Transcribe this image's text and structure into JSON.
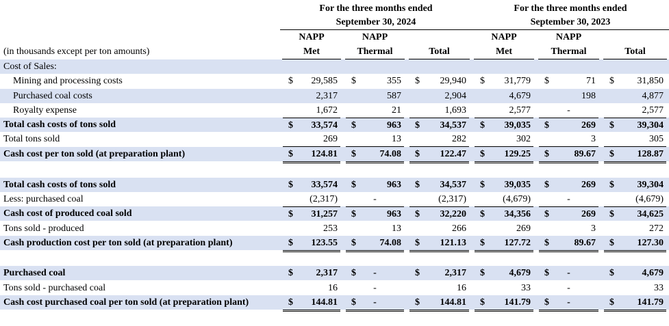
{
  "header": {
    "period_2024_line1": "For the three months ended",
    "period_2024_line2": "September 30, 2024",
    "period_2023_line1": "For the three months ended",
    "period_2023_line2": "September 30, 2023",
    "columns": [
      {
        "line1": "NAPP",
        "line2": "Met"
      },
      {
        "line1": "NAPP",
        "line2": "Thermal"
      },
      {
        "line1": "",
        "line2": "Total"
      },
      {
        "line1": "NAPP",
        "line2": "Met"
      },
      {
        "line1": "NAPP",
        "line2": "Thermal"
      },
      {
        "line1": "",
        "line2": "Total"
      }
    ],
    "units_note": "(in thousands except per ton amounts)"
  },
  "rows": [
    {
      "label": "Cost of Sales:",
      "cells": []
    },
    {
      "label": "Mining and processing costs",
      "cells": [
        {
          "cur": "$",
          "val": "29,585"
        },
        {
          "cur": "$",
          "val": "355"
        },
        {
          "cur": "$",
          "val": "29,940"
        },
        {
          "cur": "$",
          "val": "31,779"
        },
        {
          "cur": "$",
          "val": "71"
        },
        {
          "cur": "$",
          "val": "31,850"
        }
      ]
    },
    {
      "label": "Purchased coal costs",
      "cells": [
        {
          "cur": "",
          "val": "2,317"
        },
        {
          "cur": "",
          "val": "587"
        },
        {
          "cur": "",
          "val": "2,904"
        },
        {
          "cur": "",
          "val": "4,679"
        },
        {
          "cur": "",
          "val": "198"
        },
        {
          "cur": "",
          "val": "4,877"
        }
      ]
    },
    {
      "label": "Royalty expense",
      "cells": [
        {
          "cur": "",
          "val": "1,672"
        },
        {
          "cur": "",
          "val": "21"
        },
        {
          "cur": "",
          "val": "1,693"
        },
        {
          "cur": "",
          "val": "2,577"
        },
        {
          "cur": "",
          "val": "-"
        },
        {
          "cur": "",
          "val": "2,577"
        }
      ]
    },
    {
      "label": "Total cash costs of tons sold",
      "cells": [
        {
          "cur": "$",
          "val": "33,574"
        },
        {
          "cur": "$",
          "val": "963"
        },
        {
          "cur": "$",
          "val": "34,537"
        },
        {
          "cur": "$",
          "val": "39,035"
        },
        {
          "cur": "$",
          "val": "269"
        },
        {
          "cur": "$",
          "val": "39,304"
        }
      ]
    },
    {
      "label": "Total tons sold",
      "cells": [
        {
          "cur": "",
          "val": "269"
        },
        {
          "cur": "",
          "val": "13"
        },
        {
          "cur": "",
          "val": "282"
        },
        {
          "cur": "",
          "val": "302"
        },
        {
          "cur": "",
          "val": "3"
        },
        {
          "cur": "",
          "val": "305"
        }
      ]
    },
    {
      "label": "Cash cost per ton sold (at preparation plant)",
      "cells": [
        {
          "cur": "$",
          "val": "124.81"
        },
        {
          "cur": "$",
          "val": "74.08"
        },
        {
          "cur": "$",
          "val": "122.47"
        },
        {
          "cur": "$",
          "val": "129.25"
        },
        {
          "cur": "$",
          "val": "89.67"
        },
        {
          "cur": "$",
          "val": "128.87"
        }
      ]
    },
    {
      "label": "Total cash costs of tons sold",
      "cells": [
        {
          "cur": "$",
          "val": "33,574"
        },
        {
          "cur": "$",
          "val": "963"
        },
        {
          "cur": "$",
          "val": "34,537"
        },
        {
          "cur": "$",
          "val": "39,035"
        },
        {
          "cur": "$",
          "val": "269"
        },
        {
          "cur": "$",
          "val": "39,304"
        }
      ]
    },
    {
      "label": "Less: purchased coal",
      "cells": [
        {
          "cur": "",
          "val": "(2,317)"
        },
        {
          "cur": "",
          "val": "-"
        },
        {
          "cur": "",
          "val": "(2,317)"
        },
        {
          "cur": "",
          "val": "(4,679)"
        },
        {
          "cur": "",
          "val": "-"
        },
        {
          "cur": "",
          "val": "(4,679)"
        }
      ]
    },
    {
      "label": "Cash cost of produced coal sold",
      "cells": [
        {
          "cur": "$",
          "val": "31,257"
        },
        {
          "cur": "$",
          "val": "963"
        },
        {
          "cur": "$",
          "val": "32,220"
        },
        {
          "cur": "$",
          "val": "34,356"
        },
        {
          "cur": "$",
          "val": "269"
        },
        {
          "cur": "$",
          "val": "34,625"
        }
      ]
    },
    {
      "label": "Tons sold - produced",
      "cells": [
        {
          "cur": "",
          "val": "253"
        },
        {
          "cur": "",
          "val": "13"
        },
        {
          "cur": "",
          "val": "266"
        },
        {
          "cur": "",
          "val": "269"
        },
        {
          "cur": "",
          "val": "3"
        },
        {
          "cur": "",
          "val": "272"
        }
      ]
    },
    {
      "label": "Cash production cost per ton sold (at preparation plant)",
      "cells": [
        {
          "cur": "$",
          "val": "123.55"
        },
        {
          "cur": "$",
          "val": "74.08"
        },
        {
          "cur": "$",
          "val": "121.13"
        },
        {
          "cur": "$",
          "val": "127.72"
        },
        {
          "cur": "$",
          "val": "89.67"
        },
        {
          "cur": "$",
          "val": "127.30"
        }
      ]
    },
    {
      "label": "Purchased coal",
      "cells": [
        {
          "cur": "$",
          "val": "2,317"
        },
        {
          "cur": "$",
          "val": "-"
        },
        {
          "cur": "$",
          "val": "2,317"
        },
        {
          "cur": "$",
          "val": "4,679"
        },
        {
          "cur": "$",
          "val": "-"
        },
        {
          "cur": "$",
          "val": "4,679"
        }
      ]
    },
    {
      "label": "Tons sold - purchased coal",
      "cells": [
        {
          "cur": "",
          "val": "16"
        },
        {
          "cur": "",
          "val": "-"
        },
        {
          "cur": "",
          "val": "16"
        },
        {
          "cur": "",
          "val": "33"
        },
        {
          "cur": "",
          "val": "-"
        },
        {
          "cur": "",
          "val": "33"
        }
      ]
    },
    {
      "label": "Cash cost purchased coal per ton sold (at preparation plant)",
      "cells": [
        {
          "cur": "$",
          "val": "144.81"
        },
        {
          "cur": "$",
          "val": "-"
        },
        {
          "cur": "$",
          "val": "144.81"
        },
        {
          "cur": "$",
          "val": "141.79"
        },
        {
          "cur": "$",
          "val": "-"
        },
        {
          "cur": "$",
          "val": "141.79"
        }
      ]
    }
  ],
  "colors": {
    "row_shade": "#d9e1f2",
    "text": "#000000"
  }
}
